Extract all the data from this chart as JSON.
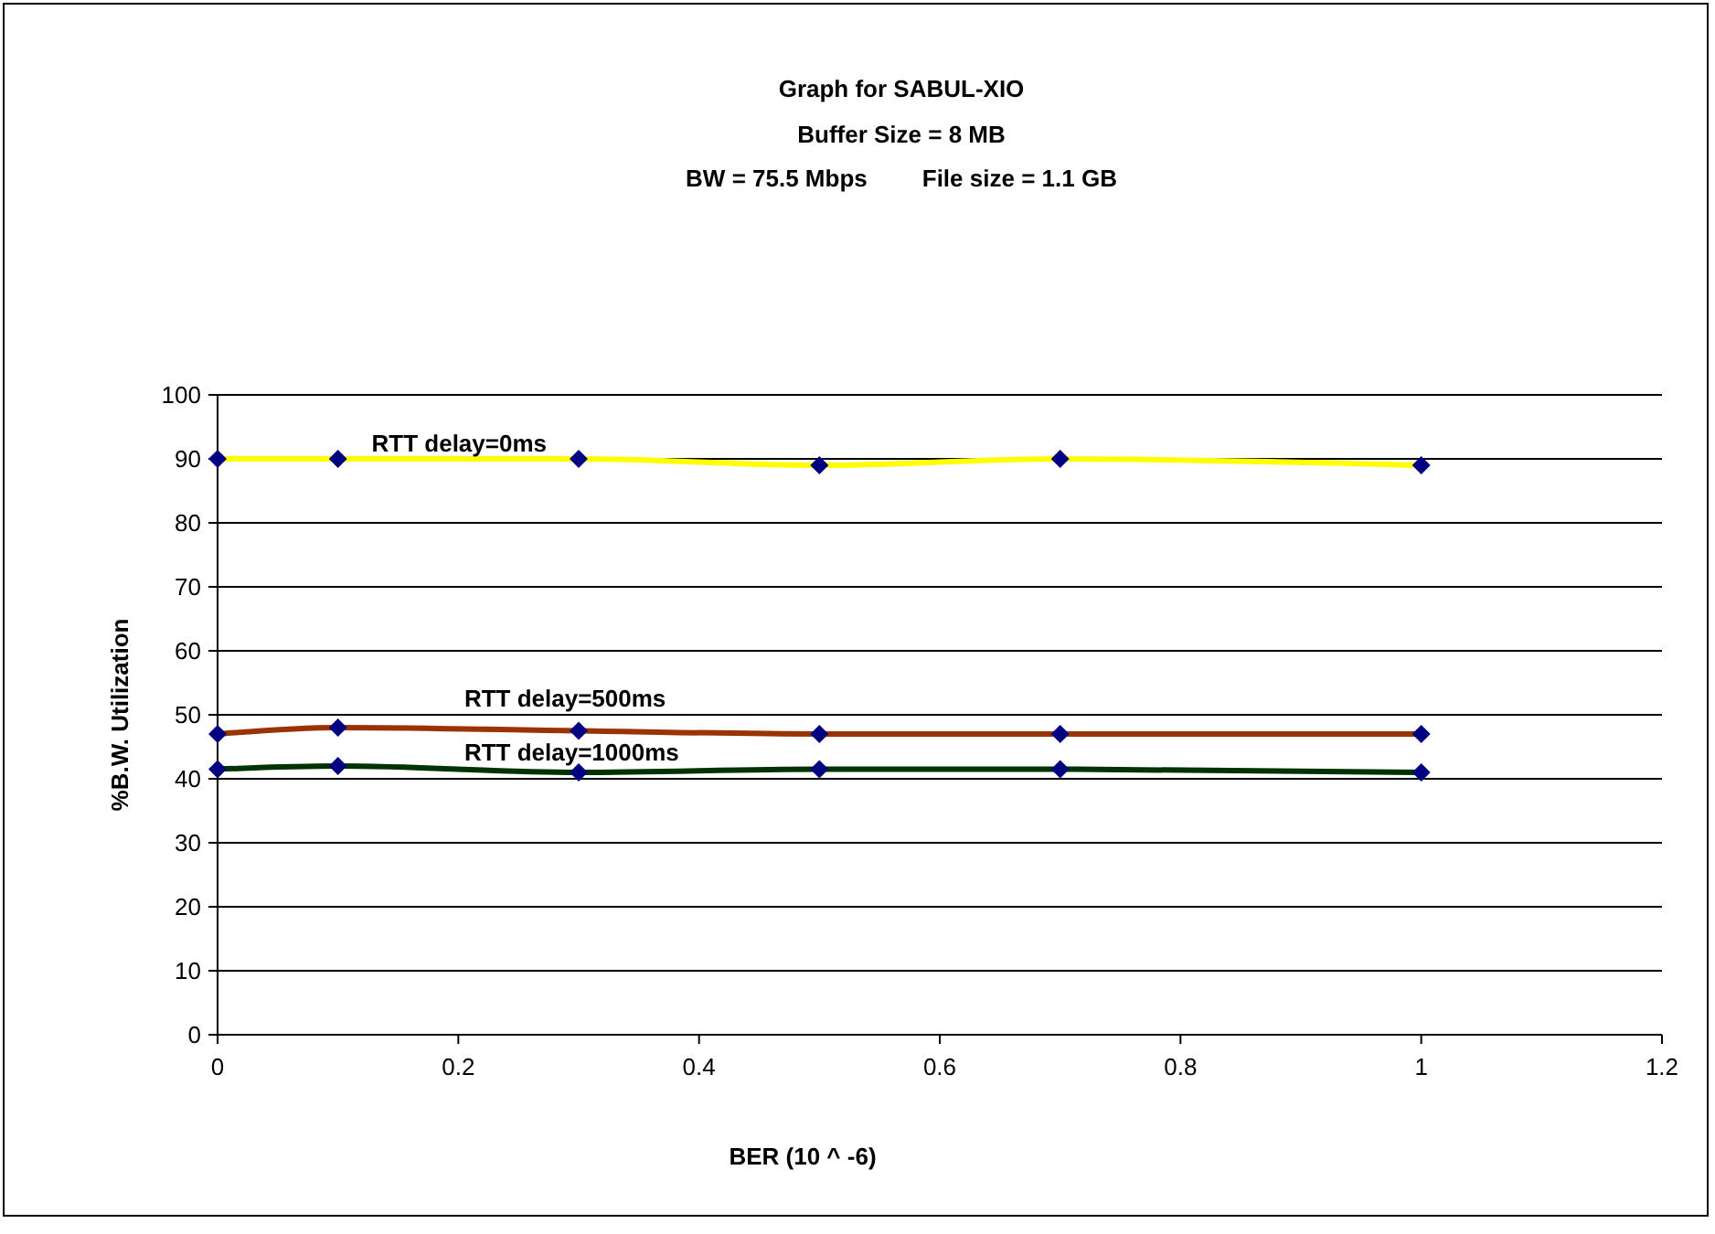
{
  "chart_data": {
    "type": "line",
    "title": "Graph for SABUL-XIO",
    "subtitle": "Buffer Size = 8 MB",
    "annotations": [
      "BW = 75.5 Mbps",
      "File size = 1.1 GB"
    ],
    "xlabel": "BER (10 ^ -6)",
    "ylabel": "%B.W. Utilization",
    "x": [
      0,
      0.1,
      0.3,
      0.5,
      0.7,
      1
    ],
    "series": [
      {
        "name": "RTT delay=0ms",
        "color": "#ffff00",
        "values": [
          90,
          90,
          90,
          89,
          90,
          89
        ]
      },
      {
        "name": "RTT delay=500ms",
        "color": "#993300",
        "values": [
          47,
          48,
          47.5,
          47,
          47,
          47
        ]
      },
      {
        "name": "RTT delay=1000ms",
        "color": "#003300",
        "values": [
          41.5,
          42,
          41,
          41.5,
          41.5,
          41
        ]
      }
    ],
    "xlim": [
      0,
      1.2
    ],
    "xticks": [
      0,
      0.2,
      0.4,
      0.6,
      0.8,
      1,
      1.2
    ],
    "ylim": [
      0,
      100
    ],
    "yticks": [
      0,
      10,
      20,
      30,
      40,
      50,
      60,
      70,
      80,
      90,
      100
    ],
    "grid": "y",
    "marker": "diamond",
    "line_style": "solid"
  }
}
